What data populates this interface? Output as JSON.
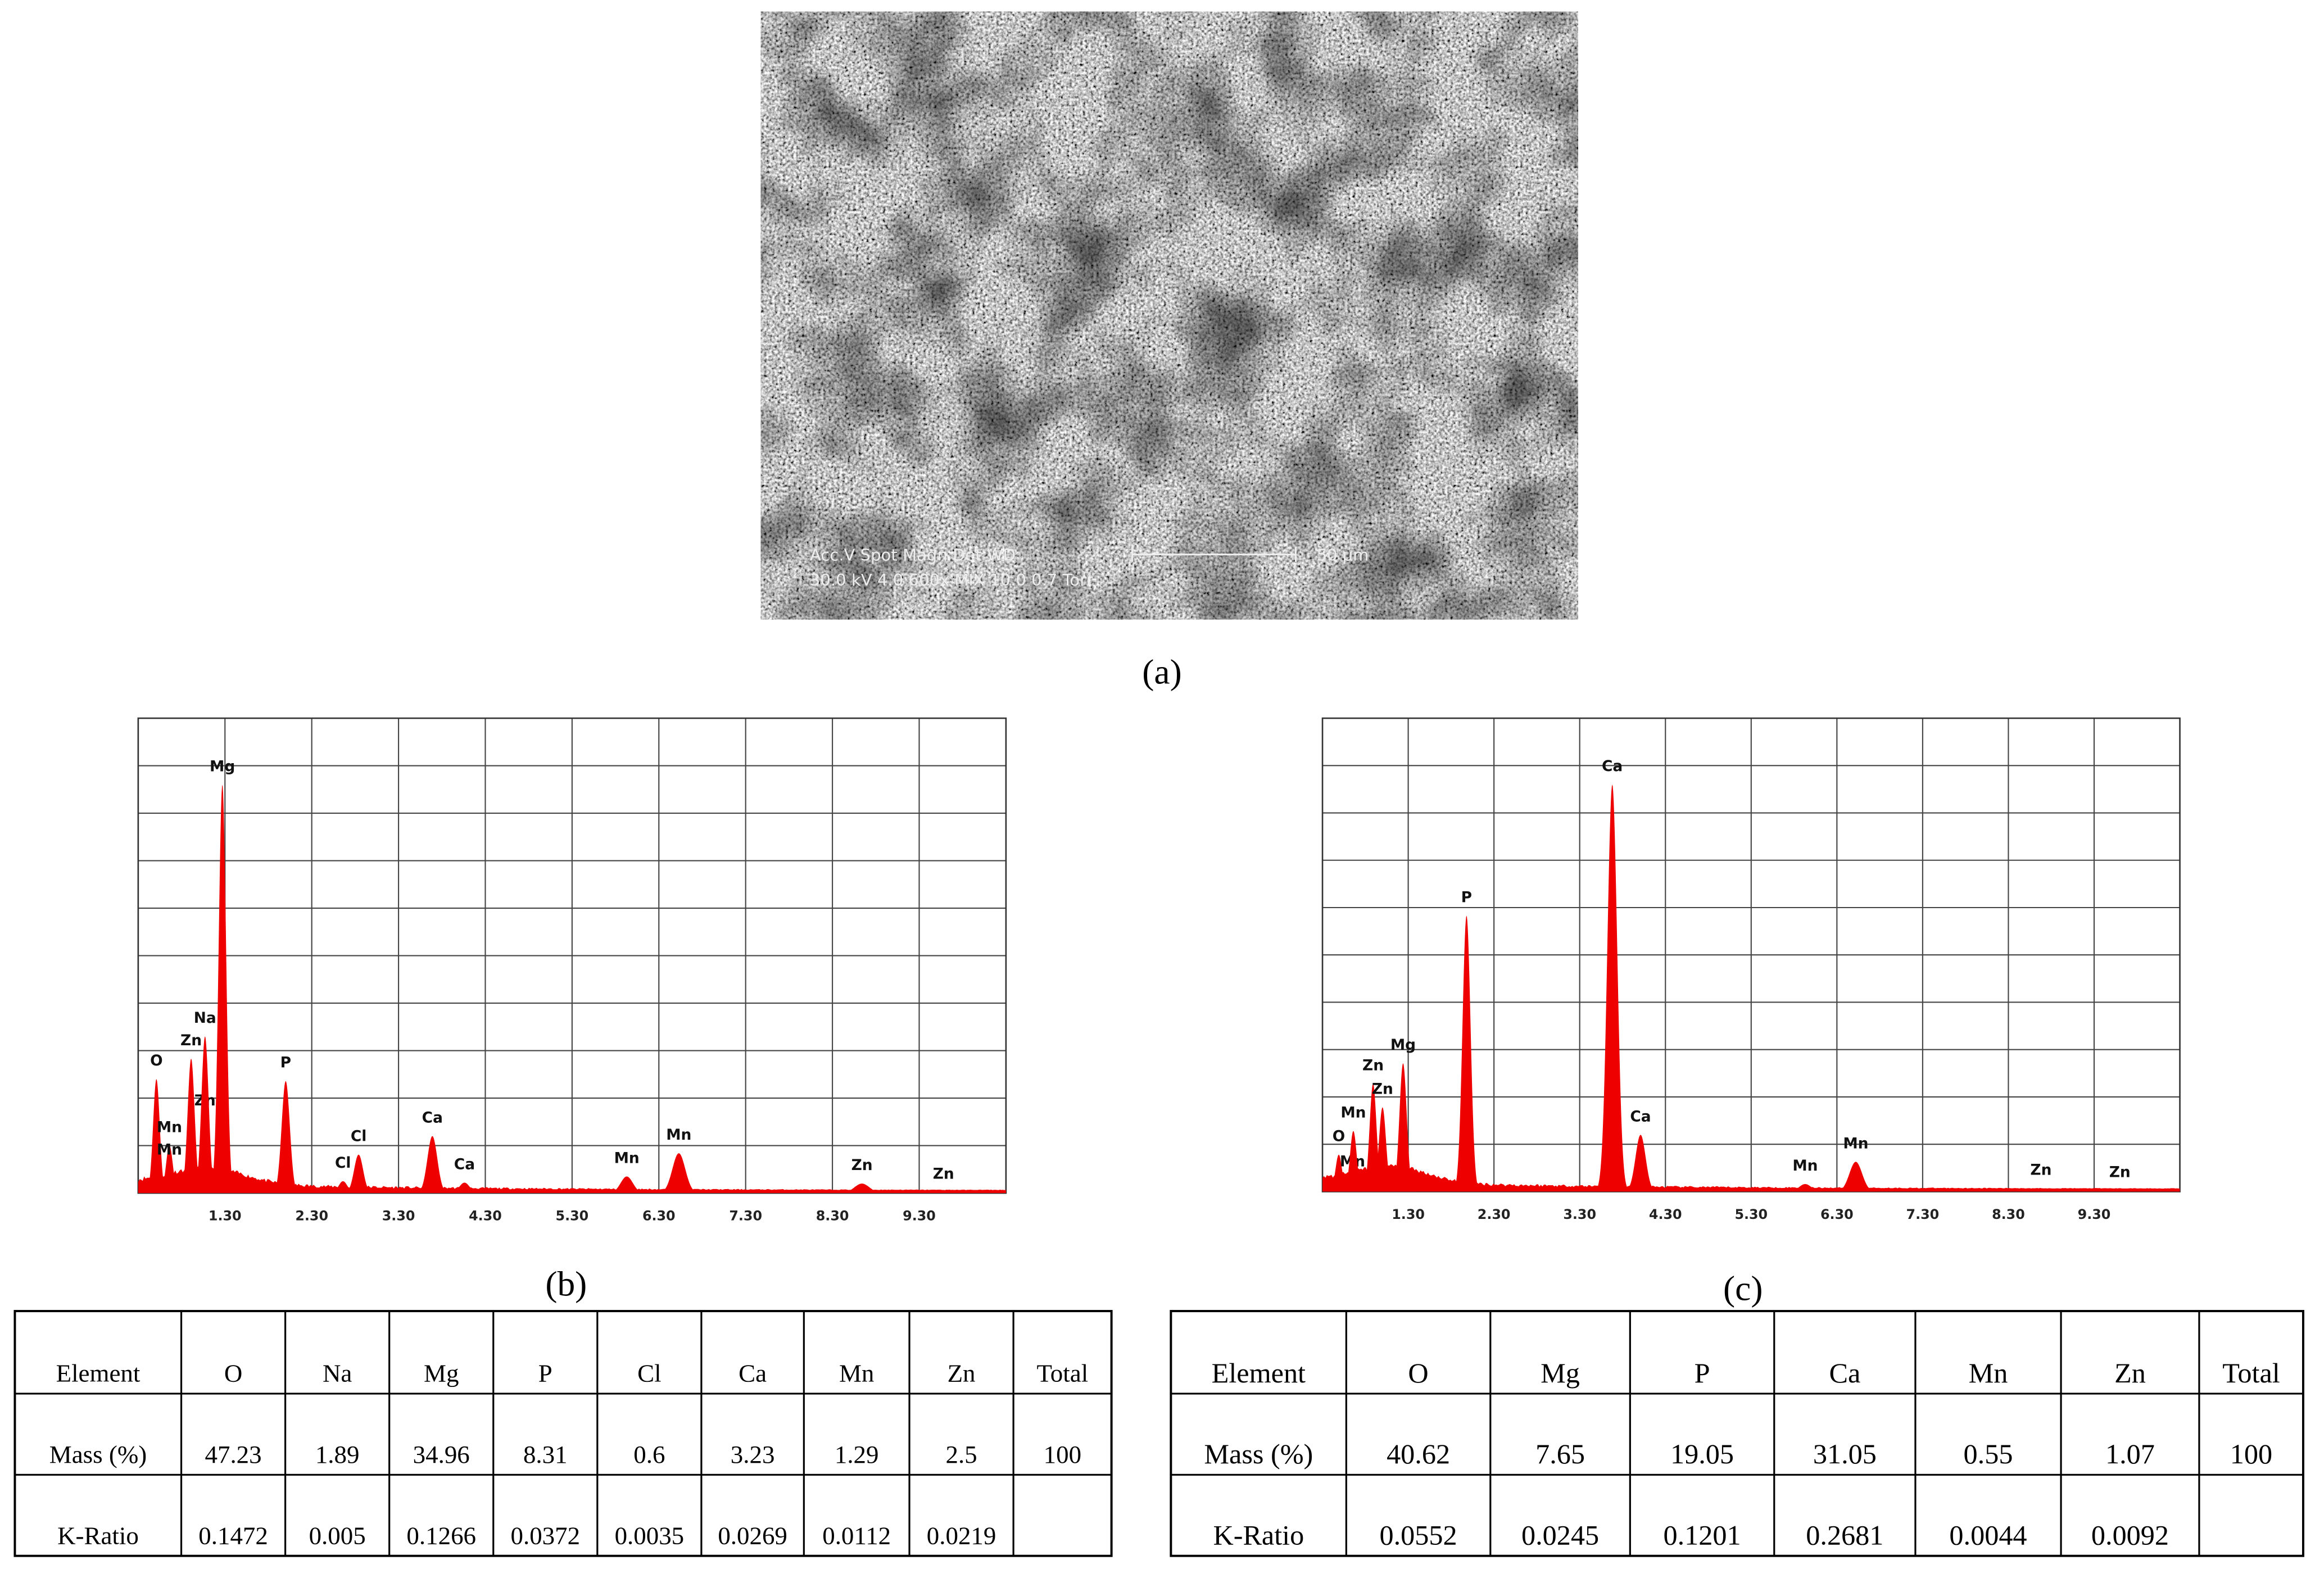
{
  "sem_image": {
    "caption": "(a)",
    "info_header": "Acc.V  Spot Magn    Det  WD",
    "scale_bar": "50 µm",
    "info_values": "30.0 kV 4.0   600x    MIX 10.0  0.7 Torr"
  },
  "chart_data": [
    {
      "type": "spectrum",
      "caption": "(b)",
      "color": "#ee0000",
      "xlim": [
        0.3,
        10.3
      ],
      "xticks": [
        {
          "value": 1.3,
          "label": "1.30"
        },
        {
          "value": 2.3,
          "label": "2.30"
        },
        {
          "value": 3.3,
          "label": "3.30"
        },
        {
          "value": 4.3,
          "label": "4.30"
        },
        {
          "value": 5.3,
          "label": "5.30"
        },
        {
          "value": 6.3,
          "label": "6.30"
        },
        {
          "value": 7.3,
          "label": "7.30"
        },
        {
          "value": 8.3,
          "label": "8.30"
        },
        {
          "value": 9.3,
          "label": "9.30"
        }
      ],
      "ylim": [
        0,
        10
      ],
      "peaks": [
        {
          "label": "O",
          "x": 0.51,
          "y": 2.4
        },
        {
          "label": "Mn",
          "x": 0.66,
          "y": 1.0
        },
        {
          "label": "Mn",
          "x": 0.66,
          "y": 0.53
        },
        {
          "label": "Zn",
          "x": 0.91,
          "y": 2.83
        },
        {
          "label": "Zn",
          "x": 1.07,
          "y": 1.56
        },
        {
          "label": "Na",
          "x": 1.07,
          "y": 3.3
        },
        {
          "label": "Mg",
          "x": 1.27,
          "y": 8.6
        },
        {
          "label": "P",
          "x": 2.0,
          "y": 2.36
        },
        {
          "label": "Cl",
          "x": 2.66,
          "y": 0.25
        },
        {
          "label": "Cl",
          "x": 2.84,
          "y": 0.81
        },
        {
          "label": "Ca",
          "x": 3.69,
          "y": 1.2
        },
        {
          "label": "Ca",
          "x": 4.06,
          "y": 0.22
        },
        {
          "label": "Mn",
          "x": 5.93,
          "y": 0.35
        },
        {
          "label": "Mn",
          "x": 6.53,
          "y": 0.84
        },
        {
          "label": "Zn",
          "x": 8.64,
          "y": 0.2
        },
        {
          "label": "Zn",
          "x": 9.58,
          "y": 0.02
        }
      ]
    },
    {
      "type": "spectrum",
      "caption": "(c)",
      "color": "#ee0000",
      "xlim": [
        0.3,
        10.3
      ],
      "xticks": [
        {
          "value": 1.3,
          "label": "1.30"
        },
        {
          "value": 2.3,
          "label": "2.30"
        },
        {
          "value": 3.3,
          "label": "3.30"
        },
        {
          "value": 4.3,
          "label": "4.30"
        },
        {
          "value": 5.3,
          "label": "5.30"
        },
        {
          "value": 6.3,
          "label": "6.30"
        },
        {
          "value": 7.3,
          "label": "7.30"
        },
        {
          "value": 8.3,
          "label": "8.30"
        },
        {
          "value": 9.3,
          "label": "9.30"
        }
      ],
      "ylim": [
        0,
        10
      ],
      "peaks": [
        {
          "label": "O",
          "x": 0.49,
          "y": 0.78
        },
        {
          "label": "Mn",
          "x": 0.65,
          "y": 0.25
        },
        {
          "label": "Mn",
          "x": 0.66,
          "y": 1.28
        },
        {
          "label": "Zn",
          "x": 0.89,
          "y": 2.28
        },
        {
          "label": "Zn",
          "x": 1.0,
          "y": 1.78
        },
        {
          "label": "Mg",
          "x": 1.24,
          "y": 2.71
        },
        {
          "label": "P",
          "x": 1.98,
          "y": 5.83
        },
        {
          "label": "Ca",
          "x": 3.68,
          "y": 8.6
        },
        {
          "label": "Ca",
          "x": 4.01,
          "y": 1.2
        },
        {
          "label": "Mn",
          "x": 5.93,
          "y": 0.16
        },
        {
          "label": "Mn",
          "x": 6.52,
          "y": 0.63
        },
        {
          "label": "Zn",
          "x": 8.68,
          "y": 0.07
        },
        {
          "label": "Zn",
          "x": 9.6,
          "y": 0.02
        }
      ]
    }
  ],
  "tables": [
    {
      "header": [
        "Element",
        "O",
        "Na",
        "Mg",
        "P",
        "Cl",
        "Ca",
        "Mn",
        "Zn",
        "Total"
      ],
      "rows": [
        [
          "Mass (%)",
          47.23,
          1.89,
          34.96,
          8.31,
          0.6,
          3.23,
          1.29,
          2.5,
          100
        ],
        [
          "K-Ratio",
          0.1472,
          0.005,
          0.1266,
          0.0372,
          0.0035,
          0.0269,
          0.0112,
          0.0219
        ]
      ]
    },
    {
      "header": [
        "Element",
        "O",
        "Mg",
        "P",
        "Ca",
        "Mn",
        "Zn",
        "Total"
      ],
      "rows": [
        [
          "Mass (%)",
          40.62,
          7.65,
          19.05,
          31.05,
          0.55,
          1.07,
          100
        ],
        [
          "K-Ratio",
          0.0552,
          0.0245,
          0.1201,
          0.2681,
          0.0044,
          0.0092
        ]
      ]
    }
  ]
}
